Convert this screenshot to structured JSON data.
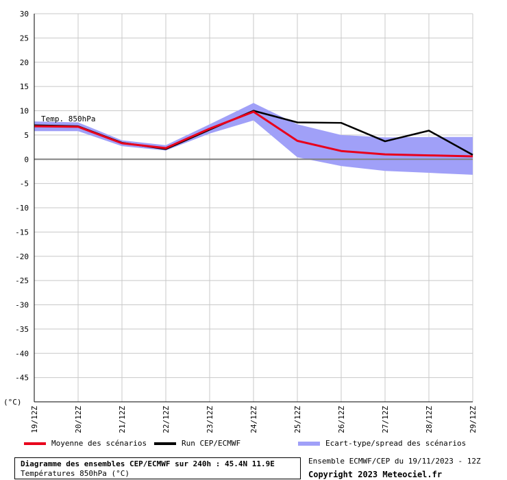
{
  "chart_data": {
    "type": "line",
    "ylim": [
      -50,
      30
    ],
    "yticks": [
      30,
      25,
      20,
      15,
      10,
      5,
      0,
      -5,
      -10,
      -15,
      -20,
      -25,
      -30,
      -35,
      -40,
      -45
    ],
    "yunit": "(°C)",
    "categories": [
      "19/12Z",
      "20/12Z",
      "21/12Z",
      "22/12Z",
      "23/12Z",
      "24/12Z",
      "25/12Z",
      "26/12Z",
      "27/12Z",
      "28/12Z",
      "29/12Z"
    ],
    "grid": true,
    "annotation": "Temp. 850hPa",
    "series": [
      {
        "name": "Moyenne des scénarios",
        "color": "#e8001c",
        "values": [
          6.8,
          6.7,
          3.3,
          2.3,
          6.3,
          9.8,
          3.8,
          1.7,
          1.0,
          0.8,
          0.6
        ]
      },
      {
        "name": "Run CEP/ECMWF",
        "color": "#000000",
        "values": [
          7.0,
          6.8,
          3.4,
          2.1,
          6.1,
          10.0,
          7.6,
          7.5,
          3.7,
          5.9,
          0.9
        ]
      }
    ],
    "spread": {
      "name": "Ecart-type/spread des scénarios",
      "color": "#a0a0f8",
      "upper": [
        7.8,
        7.6,
        3.9,
        2.9,
        7.2,
        11.6,
        7.2,
        5.0,
        4.5,
        4.6,
        4.6
      ],
      "lower": [
        5.8,
        5.8,
        2.7,
        1.8,
        5.3,
        8.0,
        0.4,
        -1.4,
        -2.4,
        -2.8,
        -3.2
      ]
    }
  },
  "footer": {
    "title": "Diagramme des ensembles CEP/ECMWF sur 240h : 45.4N 11.9E",
    "subtitle": "Températures 850hPa (°C)",
    "run_info": "Ensemble ECMWF/CEP du 19/11/2023 - 12Z",
    "copyright": "Copyright 2023 Meteociel.fr"
  }
}
